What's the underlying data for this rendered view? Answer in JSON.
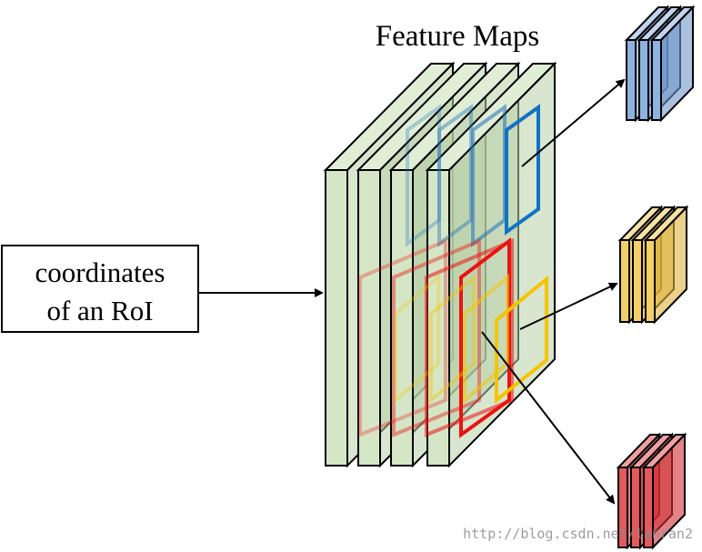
{
  "title": "Feature Maps",
  "input_box": {
    "line1": "coordinates",
    "line2": "of an RoI"
  },
  "watermark": "http://blog.csdn.net/lanran2",
  "colors": {
    "feature_map_fill": "#d5e6c7",
    "stroke": "#000000",
    "blue_roi": "#1f6fb8",
    "red_roi": "#ee1111",
    "yellow_roi": "#f5c400",
    "blue_output_fill": "#8eb3de",
    "yellow_output_fill": "#f2cf67",
    "red_output_fill": "#e25a5e"
  }
}
